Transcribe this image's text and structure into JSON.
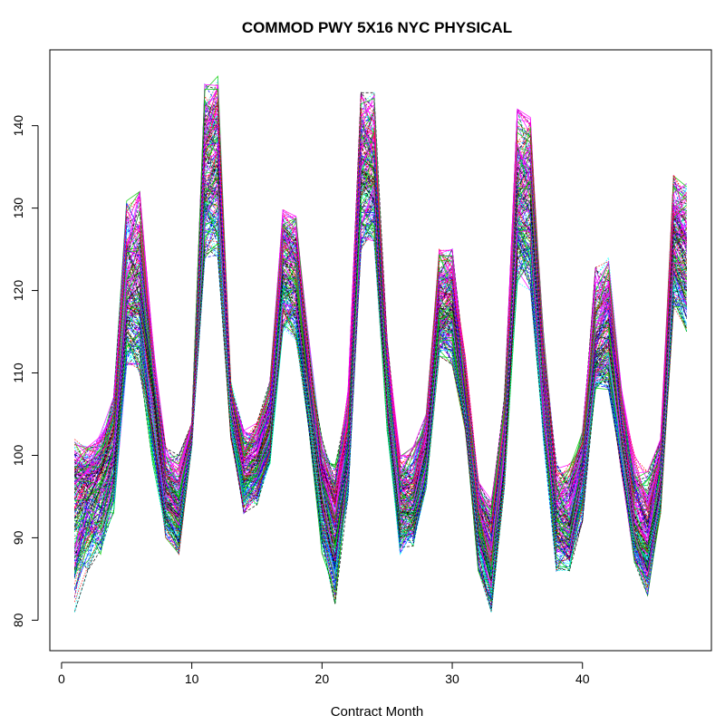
{
  "chart_data": {
    "type": "line",
    "title": "COMMOD PWY 5X16 NYC PHYSICAL",
    "xlabel": "Contract Month",
    "ylabel": "",
    "xlim": [
      -0.9,
      49.9
    ],
    "ylim": [
      76.3,
      149.2
    ],
    "xticks": [
      0,
      10,
      20,
      30,
      40
    ],
    "yticks": [
      80,
      90,
      100,
      110,
      120,
      130,
      140
    ],
    "grid": false,
    "legend": "none",
    "x": [
      1,
      2,
      3,
      4,
      5,
      6,
      7,
      8,
      9,
      10,
      11,
      12,
      13,
      14,
      15,
      16,
      17,
      18,
      19,
      20,
      21,
      22,
      23,
      24,
      25,
      26,
      27,
      28,
      29,
      30,
      31,
      32,
      33,
      34,
      35,
      36,
      37,
      38,
      39,
      40,
      41,
      42,
      43,
      44,
      45,
      46,
      47,
      48
    ],
    "n_series": 200,
    "series_low": [
      81,
      86,
      88,
      93,
      111,
      110,
      99,
      90,
      88,
      101,
      124,
      124,
      102,
      93,
      94,
      99,
      115,
      114,
      103,
      88,
      82,
      95,
      125,
      126,
      103,
      88,
      89,
      96,
      112,
      111,
      103,
      86,
      81,
      96,
      121,
      120,
      102,
      86,
      86,
      92,
      108,
      108,
      98,
      87,
      83,
      93,
      118,
      115
    ],
    "series_mid": [
      95,
      96,
      97,
      100,
      119,
      119,
      108,
      95,
      93,
      102,
      134,
      135,
      106,
      98,
      99,
      103,
      123,
      122,
      108,
      96,
      91,
      101,
      134,
      134,
      109,
      94,
      94,
      100,
      117,
      118,
      106,
      92,
      87,
      101,
      130,
      130,
      108,
      92,
      91,
      98,
      113,
      114,
      103,
      91,
      89,
      97,
      126,
      124
    ],
    "series_high": [
      102,
      101,
      103,
      107,
      131,
      132,
      114,
      101,
      100,
      104,
      145,
      146,
      109,
      103,
      104,
      109,
      130,
      129,
      114,
      102,
      99,
      108,
      144,
      144,
      114,
      100,
      101,
      105,
      125,
      125,
      112,
      97,
      95,
      107,
      142,
      141,
      115,
      99,
      99,
      103,
      123,
      124,
      108,
      100,
      98,
      102,
      134,
      133
    ],
    "palette": [
      "#000000",
      "#ff0000",
      "#00cd00",
      "#0000ff",
      "#00ffff",
      "#ff00ff"
    ]
  }
}
